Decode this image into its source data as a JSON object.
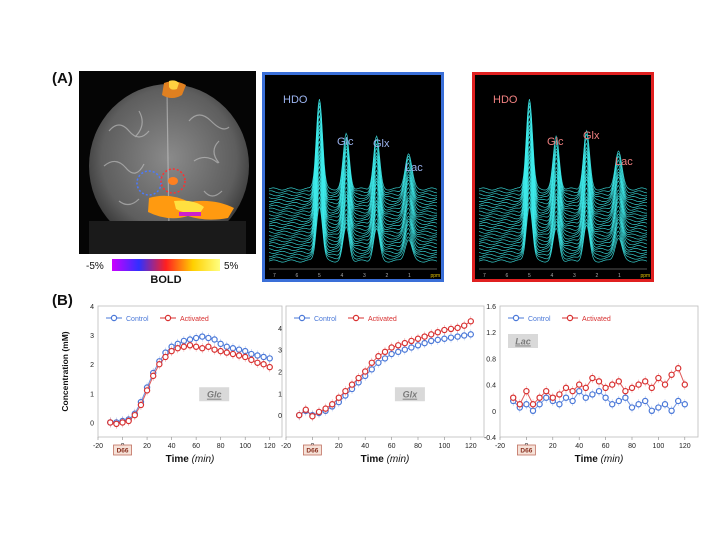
{
  "panel_a": {
    "label": "(A)",
    "colorbar": {
      "min_label": "-5%",
      "max_label": "5%",
      "title": "BOLD",
      "colors": [
        "#cc00ff",
        "#3030ff",
        "#ff2020",
        "#ffd000",
        "#ffff80"
      ]
    },
    "spectra": [
      {
        "id": "control",
        "border_color": "#3a6fd8",
        "label_color": "#9cb4f0",
        "peaks": {
          "hdo": "HDO",
          "glc": "Glc",
          "glx": "Glx",
          "lac": "Lac"
        },
        "ppm_ticks": [
          "7",
          "6",
          "5",
          "4",
          "3",
          "2",
          "1",
          "ppm"
        ]
      },
      {
        "id": "activated",
        "border_color": "#e02020",
        "label_color": "#f08080",
        "peaks": {
          "hdo": "HDO",
          "glc": "Glc",
          "glx": "Glx",
          "lac": "Lac"
        },
        "ppm_ticks": [
          "7",
          "6",
          "5",
          "4",
          "3",
          "2",
          "1",
          "ppm"
        ]
      }
    ]
  },
  "panel_b": {
    "label": "(B)",
    "marker_label": "D66",
    "legend": {
      "control": "Control",
      "activated": "Activated"
    },
    "colors": {
      "control": "#4a78d8",
      "activated": "#d83030"
    }
  },
  "chart_data": [
    {
      "type": "scatter",
      "annotation": "Glc",
      "ylabel": "Concentration (mM)",
      "xlabel": "Time (min)",
      "xlim": [
        -20,
        130
      ],
      "ylim": [
        -0.5,
        4
      ],
      "xticks": [
        -20,
        0,
        20,
        40,
        60,
        80,
        100,
        120
      ],
      "yticks": [
        0,
        1,
        2,
        3,
        4
      ],
      "legend_position": "top-left",
      "series": [
        {
          "name": "Control",
          "x": [
            -10,
            -5,
            0,
            5,
            10,
            15,
            20,
            25,
            30,
            35,
            40,
            45,
            50,
            55,
            60,
            65,
            70,
            75,
            80,
            85,
            90,
            95,
            100,
            105,
            110,
            115,
            120
          ],
          "y": [
            0,
            0,
            0.05,
            0.1,
            0.3,
            0.7,
            1.2,
            1.7,
            2.1,
            2.4,
            2.6,
            2.7,
            2.8,
            2.85,
            2.9,
            2.95,
            2.9,
            2.85,
            2.7,
            2.6,
            2.55,
            2.5,
            2.45,
            2.35,
            2.3,
            2.25,
            2.2
          ]
        },
        {
          "name": "Activated",
          "x": [
            -10,
            -5,
            0,
            5,
            10,
            15,
            20,
            25,
            30,
            35,
            40,
            45,
            50,
            55,
            60,
            65,
            70,
            75,
            80,
            85,
            90,
            95,
            100,
            105,
            110,
            115,
            120
          ],
          "y": [
            0,
            -0.05,
            0,
            0.05,
            0.25,
            0.6,
            1.1,
            1.6,
            2.0,
            2.25,
            2.45,
            2.55,
            2.6,
            2.65,
            2.6,
            2.55,
            2.6,
            2.5,
            2.45,
            2.4,
            2.35,
            2.3,
            2.25,
            2.15,
            2.05,
            2.0,
            1.9
          ]
        }
      ]
    },
    {
      "type": "scatter",
      "annotation": "Glx",
      "ylabel": "",
      "xlabel": "Time (min)",
      "xlim": [
        -20,
        130
      ],
      "ylim": [
        -1,
        5
      ],
      "xticks": [
        -20,
        0,
        20,
        40,
        60,
        80,
        100,
        120
      ],
      "yticks": [
        0,
        1,
        2,
        3,
        4
      ],
      "legend_position": "top-left",
      "series": [
        {
          "name": "Control",
          "x": [
            -10,
            -5,
            0,
            5,
            10,
            15,
            20,
            25,
            30,
            35,
            40,
            45,
            50,
            55,
            60,
            65,
            70,
            75,
            80,
            85,
            90,
            95,
            100,
            105,
            110,
            115,
            120
          ],
          "y": [
            0,
            0.2,
            0,
            0.1,
            0.2,
            0.4,
            0.6,
            0.9,
            1.2,
            1.5,
            1.8,
            2.1,
            2.4,
            2.6,
            2.8,
            2.9,
            3.0,
            3.1,
            3.2,
            3.3,
            3.4,
            3.45,
            3.5,
            3.55,
            3.6,
            3.65,
            3.7
          ]
        },
        {
          "name": "Activated",
          "x": [
            -10,
            -5,
            0,
            5,
            10,
            15,
            20,
            25,
            30,
            35,
            40,
            45,
            50,
            55,
            60,
            65,
            70,
            75,
            80,
            85,
            90,
            95,
            100,
            105,
            110,
            115,
            120
          ],
          "y": [
            0,
            0.25,
            -0.05,
            0.15,
            0.3,
            0.5,
            0.8,
            1.1,
            1.4,
            1.7,
            2.0,
            2.4,
            2.7,
            2.9,
            3.1,
            3.2,
            3.3,
            3.4,
            3.5,
            3.6,
            3.7,
            3.8,
            3.9,
            3.95,
            4.0,
            4.1,
            4.3
          ]
        }
      ]
    },
    {
      "type": "scatter",
      "annotation": "Lac",
      "ylabel": "",
      "xlabel": "Time (min)",
      "xlim": [
        -20,
        130
      ],
      "ylim": [
        -0.4,
        1.6
      ],
      "xticks": [
        -20,
        0,
        20,
        40,
        60,
        80,
        100,
        120
      ],
      "yticks": [
        -0.4,
        0,
        0.4,
        0.8,
        1.2,
        1.6
      ],
      "legend_position": "top-left",
      "series": [
        {
          "name": "Control",
          "x": [
            -10,
            -5,
            0,
            5,
            10,
            15,
            20,
            25,
            30,
            35,
            40,
            45,
            50,
            55,
            60,
            65,
            70,
            75,
            80,
            85,
            90,
            95,
            100,
            105,
            110,
            115,
            120
          ],
          "y": [
            0.15,
            0.05,
            0.1,
            0.0,
            0.1,
            0.2,
            0.15,
            0.1,
            0.2,
            0.15,
            0.3,
            0.2,
            0.25,
            0.3,
            0.2,
            0.1,
            0.15,
            0.2,
            0.05,
            0.1,
            0.15,
            0.0,
            0.05,
            0.1,
            0.0,
            0.15,
            0.1
          ]
        },
        {
          "name": "Activated",
          "x": [
            -10,
            -5,
            0,
            5,
            10,
            15,
            20,
            25,
            30,
            35,
            40,
            45,
            50,
            55,
            60,
            65,
            70,
            75,
            80,
            85,
            90,
            95,
            100,
            105,
            110,
            115,
            120
          ],
          "y": [
            0.2,
            0.1,
            0.3,
            0.1,
            0.2,
            0.3,
            0.2,
            0.25,
            0.35,
            0.3,
            0.4,
            0.35,
            0.5,
            0.45,
            0.35,
            0.4,
            0.45,
            0.3,
            0.35,
            0.4,
            0.45,
            0.35,
            0.5,
            0.4,
            0.55,
            0.65,
            0.4
          ]
        }
      ]
    }
  ]
}
